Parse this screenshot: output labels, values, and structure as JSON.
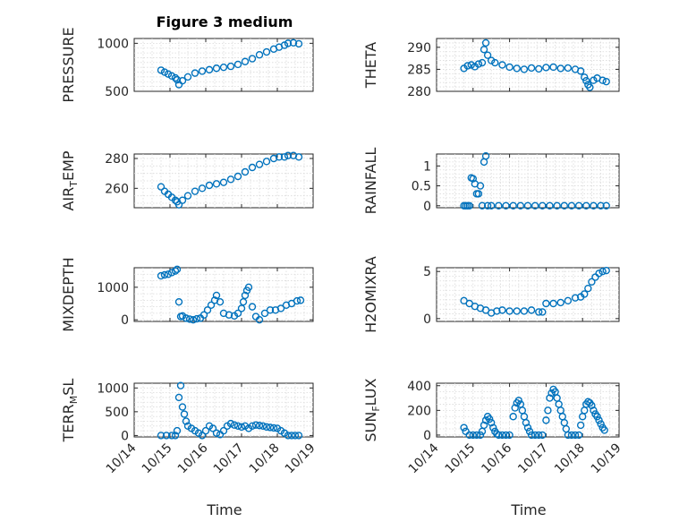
{
  "figure": {
    "title": "Figure 3 medium",
    "marker_color": "#0072BD",
    "x_tick_labels": [
      "10/14",
      "10/15",
      "10/16",
      "10/17",
      "10/18",
      "10/19"
    ],
    "x_label": "Time"
  },
  "chart_data": [
    {
      "type": "scatter",
      "ylabel": "PRESSURE",
      "ylim": [
        500,
        1050
      ],
      "yticks": [
        500,
        1000
      ],
      "xlim": [
        0,
        5
      ],
      "grid": true,
      "x": [
        0.75,
        0.85,
        0.95,
        1.05,
        1.15,
        1.2,
        1.25,
        1.35,
        1.5,
        1.7,
        1.9,
        2.1,
        2.3,
        2.5,
        2.7,
        2.9,
        3.1,
        3.3,
        3.5,
        3.7,
        3.9,
        4.05,
        4.2,
        4.3,
        4.45,
        4.6
      ],
      "y": [
        720,
        700,
        680,
        660,
        640,
        620,
        570,
        610,
        650,
        690,
        710,
        725,
        740,
        750,
        760,
        780,
        810,
        840,
        880,
        910,
        940,
        960,
        980,
        1000,
        1005,
        995
      ]
    },
    {
      "type": "scatter",
      "ylabel": "THETA",
      "ylim": [
        280,
        292
      ],
      "yticks": [
        280,
        285,
        290
      ],
      "xlim": [
        0,
        5
      ],
      "grid": true,
      "x": [
        0.75,
        0.85,
        0.95,
        1.05,
        1.15,
        1.25,
        1.3,
        1.35,
        1.4,
        1.5,
        1.6,
        1.8,
        2.0,
        2.2,
        2.4,
        2.6,
        2.8,
        3.0,
        3.2,
        3.4,
        3.6,
        3.8,
        3.95,
        4.05,
        4.1,
        4.15,
        4.2,
        4.3,
        4.4,
        4.55,
        4.65
      ],
      "y": [
        285.2,
        285.8,
        286.0,
        285.6,
        286.2,
        286.5,
        289.5,
        291.0,
        288.2,
        287.0,
        286.5,
        286.0,
        285.5,
        285.2,
        285.0,
        285.3,
        285.1,
        285.4,
        285.5,
        285.2,
        285.3,
        285.0,
        284.6,
        283.2,
        282.4,
        281.5,
        280.9,
        282.5,
        283.0,
        282.5,
        282.2
      ]
    },
    {
      "type": "scatter",
      "ylabel": "AIR_TEMP",
      "ylim": [
        247,
        283
      ],
      "yticks": [
        260,
        280
      ],
      "xlim": [
        0,
        5
      ],
      "grid": true,
      "x": [
        0.75,
        0.85,
        0.95,
        1.05,
        1.15,
        1.2,
        1.25,
        1.35,
        1.5,
        1.7,
        1.9,
        2.1,
        2.3,
        2.5,
        2.7,
        2.9,
        3.1,
        3.3,
        3.5,
        3.7,
        3.9,
        4.05,
        4.2,
        4.3,
        4.45,
        4.6
      ],
      "y": [
        261,
        258,
        256,
        254,
        252,
        251,
        249,
        252,
        255,
        258,
        260,
        262,
        263,
        264,
        266,
        268,
        271,
        274,
        276,
        278,
        280,
        281,
        281,
        282,
        282,
        281
      ]
    },
    {
      "type": "scatter",
      "ylabel": "RAINFALL",
      "ylim": [
        -0.05,
        1.3
      ],
      "yticks": [
        0,
        0.5,
        1
      ],
      "xlim": [
        0,
        5
      ],
      "grid": true,
      "x": [
        0.75,
        0.8,
        0.85,
        0.9,
        0.95,
        1.0,
        1.05,
        1.1,
        1.15,
        1.2,
        1.25,
        1.3,
        1.35,
        1.4,
        1.5,
        1.7,
        1.9,
        2.1,
        2.3,
        2.5,
        2.7,
        2.9,
        3.1,
        3.3,
        3.5,
        3.7,
        3.9,
        4.1,
        4.3,
        4.5,
        4.65
      ],
      "y": [
        0,
        0,
        0,
        0,
        0.7,
        0.68,
        0.55,
        0.3,
        0.3,
        0.5,
        0,
        1.1,
        1.25,
        0,
        0,
        0,
        0,
        0,
        0,
        0,
        0,
        0,
        0,
        0,
        0,
        0,
        0,
        0,
        0,
        0,
        0
      ]
    },
    {
      "type": "scatter",
      "ylabel": "MIXDEPTH",
      "ylim": [
        -50,
        1600
      ],
      "yticks": [
        0,
        1000
      ],
      "xlim": [
        0,
        5
      ],
      "grid": true,
      "x": [
        0.75,
        0.85,
        0.95,
        1.05,
        1.15,
        1.2,
        1.25,
        1.3,
        1.35,
        1.45,
        1.55,
        1.65,
        1.75,
        1.85,
        1.95,
        2.05,
        2.15,
        2.25,
        2.3,
        2.4,
        2.5,
        2.65,
        2.8,
        2.9,
        3.0,
        3.05,
        3.1,
        3.15,
        3.2,
        3.3,
        3.4,
        3.5,
        3.65,
        3.8,
        3.95,
        4.1,
        4.25,
        4.4,
        4.55,
        4.65
      ],
      "y": [
        1350,
        1380,
        1400,
        1450,
        1500,
        1550,
        550,
        100,
        120,
        50,
        20,
        0,
        30,
        50,
        150,
        300,
        450,
        600,
        750,
        550,
        200,
        150,
        120,
        200,
        350,
        550,
        750,
        900,
        1000,
        400,
        100,
        0,
        200,
        300,
        300,
        350,
        450,
        500,
        580,
        600
      ]
    },
    {
      "type": "scatter",
      "ylabel": "H2OMIXRA",
      "ylim": [
        -0.3,
        5.4
      ],
      "yticks": [
        0,
        5
      ],
      "xlim": [
        0,
        5
      ],
      "grid": true,
      "x": [
        0.75,
        0.9,
        1.05,
        1.2,
        1.35,
        1.5,
        1.65,
        1.8,
        2.0,
        2.2,
        2.4,
        2.6,
        2.8,
        2.9,
        3.0,
        3.2,
        3.4,
        3.6,
        3.8,
        3.95,
        4.05,
        4.15,
        4.25,
        4.35,
        4.45,
        4.55,
        4.65
      ],
      "y": [
        1.9,
        1.6,
        1.3,
        1.1,
        0.9,
        0.6,
        0.8,
        0.9,
        0.8,
        0.8,
        0.8,
        0.9,
        0.7,
        0.7,
        1.6,
        1.6,
        1.7,
        1.9,
        2.2,
        2.3,
        2.6,
        3.2,
        3.9,
        4.4,
        4.8,
        5.0,
        5.1
      ]
    },
    {
      "type": "scatter",
      "ylabel": "TERR_MSL",
      "ylim": [
        -30,
        1100
      ],
      "yticks": [
        0,
        500,
        1000
      ],
      "xlim": [
        0,
        5
      ],
      "grid": true,
      "x": [
        0.75,
        0.9,
        1.05,
        1.15,
        1.2,
        1.25,
        1.3,
        1.35,
        1.4,
        1.45,
        1.5,
        1.6,
        1.7,
        1.8,
        1.9,
        2.0,
        2.1,
        2.2,
        2.3,
        2.4,
        2.5,
        2.6,
        2.7,
        2.8,
        2.9,
        3.0,
        3.1,
        3.2,
        3.3,
        3.4,
        3.5,
        3.6,
        3.7,
        3.8,
        3.9,
        4.0,
        4.1,
        4.2,
        4.3,
        4.4,
        4.5,
        4.6
      ],
      "y": [
        0,
        0,
        0,
        0,
        100,
        800,
        1050,
        600,
        450,
        300,
        200,
        150,
        100,
        50,
        0,
        100,
        200,
        150,
        50,
        20,
        100,
        200,
        250,
        220,
        200,
        180,
        200,
        150,
        200,
        220,
        210,
        200,
        180,
        170,
        160,
        150,
        100,
        50,
        0,
        0,
        0,
        0
      ]
    },
    {
      "type": "scatter",
      "ylabel": "SUN_FLUX",
      "ylim": [
        -15,
        420
      ],
      "yticks": [
        0,
        200,
        400
      ],
      "xlim": [
        0,
        5
      ],
      "grid": true,
      "x": [
        0.75,
        0.8,
        0.9,
        1.0,
        1.1,
        1.2,
        1.25,
        1.3,
        1.35,
        1.4,
        1.45,
        1.5,
        1.55,
        1.6,
        1.65,
        1.7,
        1.8,
        1.9,
        2.0,
        2.1,
        2.15,
        2.2,
        2.25,
        2.3,
        2.35,
        2.4,
        2.45,
        2.5,
        2.55,
        2.6,
        2.7,
        2.8,
        2.9,
        3.0,
        3.05,
        3.1,
        3.15,
        3.2,
        3.25,
        3.3,
        3.35,
        3.4,
        3.45,
        3.5,
        3.55,
        3.6,
        3.7,
        3.8,
        3.9,
        3.95,
        4.0,
        4.05,
        4.1,
        4.15,
        4.2,
        4.25,
        4.3,
        4.35,
        4.4,
        4.45,
        4.5,
        4.55,
        4.6
      ],
      "y": [
        60,
        30,
        0,
        0,
        0,
        0,
        30,
        80,
        120,
        150,
        130,
        100,
        60,
        30,
        10,
        0,
        0,
        0,
        0,
        150,
        220,
        260,
        280,
        250,
        200,
        150,
        100,
        60,
        30,
        0,
        0,
        0,
        0,
        120,
        200,
        300,
        340,
        370,
        350,
        300,
        250,
        200,
        150,
        100,
        50,
        0,
        0,
        0,
        0,
        80,
        150,
        200,
        250,
        270,
        260,
        240,
        200,
        170,
        150,
        120,
        90,
        60,
        40
      ]
    }
  ]
}
